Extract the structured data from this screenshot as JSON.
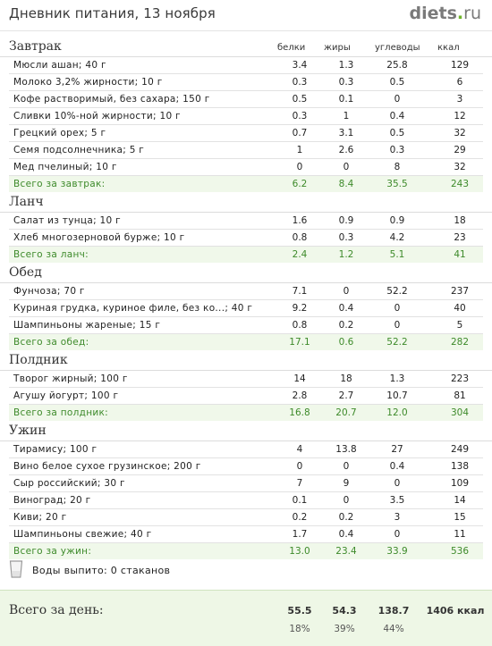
{
  "header": {
    "title": "Дневник питания, 13 ноября",
    "logo_main": "diets",
    "logo_dot": ".",
    "logo_tld": "ru"
  },
  "columns": {
    "protein": "белки",
    "fat": "жиры",
    "carbs": "углеводы",
    "kcal": "ккал"
  },
  "meals": [
    {
      "name": "Завтрак",
      "items": [
        {
          "name": "Мюсли ашан; 40 г",
          "b": "3.4",
          "f": "1.3",
          "u": "25.8",
          "k": "129"
        },
        {
          "name": "Молоко 3,2% жирности; 10 г",
          "b": "0.3",
          "f": "0.3",
          "u": "0.5",
          "k": "6"
        },
        {
          "name": "Кофе растворимый, без сахара; 150 г",
          "b": "0.5",
          "f": "0.1",
          "u": "0",
          "k": "3"
        },
        {
          "name": "Сливки 10%-ной жирности; 10 г",
          "b": "0.3",
          "f": "1",
          "u": "0.4",
          "k": "12"
        },
        {
          "name": "Грецкий орех; 5 г",
          "b": "0.7",
          "f": "3.1",
          "u": "0.5",
          "k": "32"
        },
        {
          "name": "Семя подсолнечника; 5 г",
          "b": "1",
          "f": "2.6",
          "u": "0.3",
          "k": "29"
        },
        {
          "name": "Мед пчелиный; 10 г",
          "b": "0",
          "f": "0",
          "u": "8",
          "k": "32"
        }
      ],
      "total": {
        "name": "Всего за завтрак:",
        "b": "6.2",
        "f": "8.4",
        "u": "35.5",
        "k": "243"
      }
    },
    {
      "name": "Ланч",
      "items": [
        {
          "name": "Салат из тунца; 10 г",
          "b": "1.6",
          "f": "0.9",
          "u": "0.9",
          "k": "18"
        },
        {
          "name": "Хлеб многозерновой бурже; 10 г",
          "b": "0.8",
          "f": "0.3",
          "u": "4.2",
          "k": "23"
        }
      ],
      "total": {
        "name": "Всего за ланч:",
        "b": "2.4",
        "f": "1.2",
        "u": "5.1",
        "k": "41"
      }
    },
    {
      "name": "Обед",
      "items": [
        {
          "name": "Фунчоза; 70 г",
          "b": "7.1",
          "f": "0",
          "u": "52.2",
          "k": "237"
        },
        {
          "name": "Куриная грудка, куриное филе, без ко...; 40 г",
          "b": "9.2",
          "f": "0.4",
          "u": "0",
          "k": "40"
        },
        {
          "name": "Шампиньоны жареные; 15 г",
          "b": "0.8",
          "f": "0.2",
          "u": "0",
          "k": "5"
        }
      ],
      "total": {
        "name": "Всего за обед:",
        "b": "17.1",
        "f": "0.6",
        "u": "52.2",
        "k": "282"
      }
    },
    {
      "name": "Полдник",
      "items": [
        {
          "name": "Творог жирный; 100 г",
          "b": "14",
          "f": "18",
          "u": "1.3",
          "k": "223"
        },
        {
          "name": "Агушу йогурт; 100 г",
          "b": "2.8",
          "f": "2.7",
          "u": "10.7",
          "k": "81"
        }
      ],
      "total": {
        "name": "Всего за полдник:",
        "b": "16.8",
        "f": "20.7",
        "u": "12.0",
        "k": "304"
      }
    },
    {
      "name": "Ужин",
      "items": [
        {
          "name": "Тирамису; 100 г",
          "b": "4",
          "f": "13.8",
          "u": "27",
          "k": "249"
        },
        {
          "name": "Вино белое сухое грузинское; 200 г",
          "b": "0",
          "f": "0",
          "u": "0.4",
          "k": "138"
        },
        {
          "name": "Сыр российский; 30 г",
          "b": "7",
          "f": "9",
          "u": "0",
          "k": "109"
        },
        {
          "name": "Виноград; 20 г",
          "b": "0.1",
          "f": "0",
          "u": "3.5",
          "k": "14"
        },
        {
          "name": "Киви; 20 г",
          "b": "0.2",
          "f": "0.2",
          "u": "3",
          "k": "15"
        },
        {
          "name": "Шампиньоны свежие; 40 г",
          "b": "1.7",
          "f": "0.4",
          "u": "0",
          "k": "11"
        }
      ],
      "total": {
        "name": "Всего за ужин:",
        "b": "13.0",
        "f": "23.4",
        "u": "33.9",
        "k": "536"
      }
    }
  ],
  "water": {
    "text": "Воды выпито: 0 стаканов",
    "icon": "glass-icon"
  },
  "day_total": {
    "label": "Всего за день:",
    "protein": "55.5",
    "fat": "54.3",
    "carbs": "138.7",
    "kcal": "1406 ккал",
    "protein_pct": "18%",
    "fat_pct": "39%",
    "carbs_pct": "44%"
  },
  "colors": {
    "total_bg": "#f0f8ea",
    "total_text": "#3d8a2a",
    "logo_accent": "#6fb52a"
  }
}
